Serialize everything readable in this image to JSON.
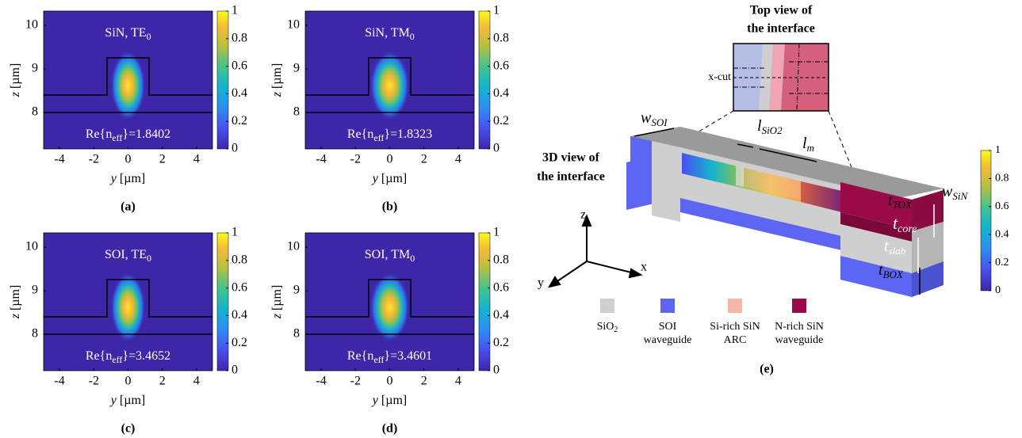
{
  "panels": [
    {
      "title": "SiN, TE",
      "title_sub": "0",
      "neff_pre": "Re{n",
      "neff_sub": "eff",
      "neff_post": "}=1.8402",
      "xlabel_var": "y",
      "xlabel_unit": " [µm]",
      "ylabel_var": "z",
      "ylabel_unit": " [µm]",
      "xticks": [
        -4,
        -2,
        0,
        2,
        4
      ],
      "yticks": [
        8,
        9,
        10
      ],
      "cbar_ticks": [
        0,
        0.2,
        0.4,
        0.6,
        0.8,
        1
      ],
      "caption": "(a)"
    },
    {
      "title": "SiN, TM",
      "title_sub": "0",
      "neff_pre": "Re{n",
      "neff_sub": "eff",
      "neff_post": "}=1.8323",
      "xlabel_var": "y",
      "xlabel_unit": " [µm]",
      "ylabel_var": "z",
      "ylabel_unit": " [µm]",
      "xticks": [
        -4,
        -2,
        0,
        2,
        4
      ],
      "yticks": [
        8,
        9,
        10
      ],
      "cbar_ticks": [
        0,
        0.2,
        0.4,
        0.6,
        0.8,
        1
      ],
      "caption": "(b)"
    },
    {
      "title": "SOI, TE",
      "title_sub": "0",
      "neff_pre": "Re{n",
      "neff_sub": "eff",
      "neff_post": "}=3.4652",
      "xlabel_var": "y",
      "xlabel_unit": " [µm]",
      "ylabel_var": "z",
      "ylabel_unit": " [µm]",
      "xticks": [
        -4,
        -2,
        0,
        2,
        4
      ],
      "yticks": [
        8,
        9,
        10
      ],
      "cbar_ticks": [
        0,
        0.2,
        0.4,
        0.6,
        0.8,
        1
      ],
      "caption": "(c)"
    },
    {
      "title": "SOI, TM",
      "title_sub": "0",
      "neff_pre": "Re{n",
      "neff_sub": "eff",
      "neff_post": "}=3.4601",
      "xlabel_var": "y",
      "xlabel_unit": " [µm]",
      "ylabel_var": "z",
      "ylabel_unit": " [µm]",
      "xticks": [
        -4,
        -2,
        0,
        2,
        4
      ],
      "yticks": [
        8,
        9,
        10
      ],
      "cbar_ticks": [
        0,
        0.2,
        0.4,
        0.6,
        0.8,
        1
      ],
      "caption": "(d)"
    }
  ],
  "schematic": {
    "top_view_title": [
      "Top view of",
      "the interface"
    ],
    "xcut": "x-cut",
    "view3d_title": [
      "3D view of",
      "the interface"
    ],
    "w_soi": {
      "var": "w",
      "sub": "SOI"
    },
    "l_sio2": {
      "var": "l",
      "sub": "SiO2"
    },
    "l_m": {
      "var": "l",
      "sub": "m"
    },
    "t_tox": {
      "var": "t",
      "sub": "TOX"
    },
    "w_sin": {
      "var": "w",
      "sub": "SiN"
    },
    "t_core": {
      "var": "t",
      "sub": "core"
    },
    "t_slab": {
      "var": "t",
      "sub": "slab"
    },
    "t_box": {
      "var": "t",
      "sub": "BOX"
    },
    "axes": {
      "z": "z",
      "x": "x",
      "y": "y"
    },
    "cbar_ticks": [
      0,
      0.2,
      0.4,
      0.6,
      0.8,
      1
    ],
    "legend": [
      {
        "lines": [
          "SiO",
          "2"
        ]
      },
      {
        "lines": [
          "SOI",
          "waveguide"
        ]
      },
      {
        "lines": [
          "Si-rich SiN",
          "ARC"
        ]
      },
      {
        "lines": [
          "N-rich SiN",
          "waveguide"
        ]
      }
    ],
    "caption": "(e)"
  }
}
